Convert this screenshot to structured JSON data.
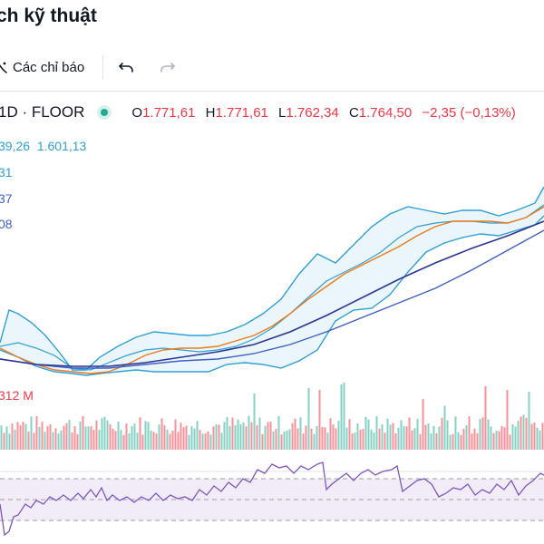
{
  "header": {
    "title": "ch kỹ thuật"
  },
  "toolbar": {
    "indicators_label": "Các chỉ báo",
    "indicators_icon": "indicators-icon",
    "undo_icon": "undo-icon",
    "redo_icon": "redo-icon"
  },
  "legend": {
    "symbol": "1D · FLOOR",
    "status_icon": "market-status-dot",
    "open_key": "O",
    "open_value": "1.771,61",
    "high_key": "H",
    "high_value": "1.771,61",
    "low_key": "L",
    "low_value": "1.762,34",
    "close_key": "C",
    "close_value": "1.764,50",
    "change": "−2,35 (−0,13%)"
  },
  "indicator_values": {
    "bb_line": [
      "39,26",
      "1.601,13"
    ],
    "row2": "31",
    "row3": "37",
    "row4": "08"
  },
  "volume": {
    "label": "312 M"
  },
  "colors": {
    "up": "#22ab94",
    "down": "#f23645",
    "bollinger": "#2ea0d6",
    "ma_orange": "#ec7a1c",
    "ma_blue": "#3f5fc4",
    "ma_navy": "#2c3590",
    "rsi_line": "#7e57c2",
    "rsi_band": "#ede7f6"
  }
}
